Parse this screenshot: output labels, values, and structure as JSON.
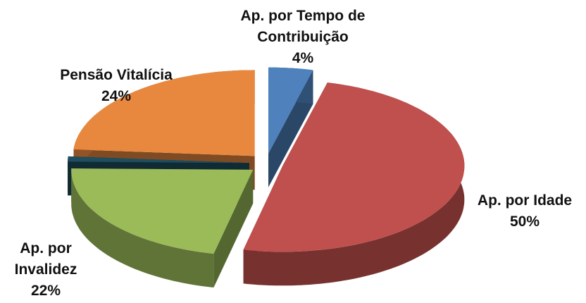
{
  "chart_data": {
    "type": "pie",
    "categories": [
      "Ap. por Tempo de Contribuição",
      "Ap. por Idade",
      "Ap. por Invalidez",
      null,
      "Pensão Vitalícia"
    ],
    "values": [
      4,
      50,
      22,
      1,
      24
    ],
    "value_labels": [
      "4%",
      "50%",
      "22%",
      null,
      "24%"
    ],
    "colors": [
      "#4f81bd",
      "#c0504d",
      "#9bbb59",
      "#1f4e5f",
      "#e8883e"
    ],
    "exploded": true,
    "three_d": true
  }
}
